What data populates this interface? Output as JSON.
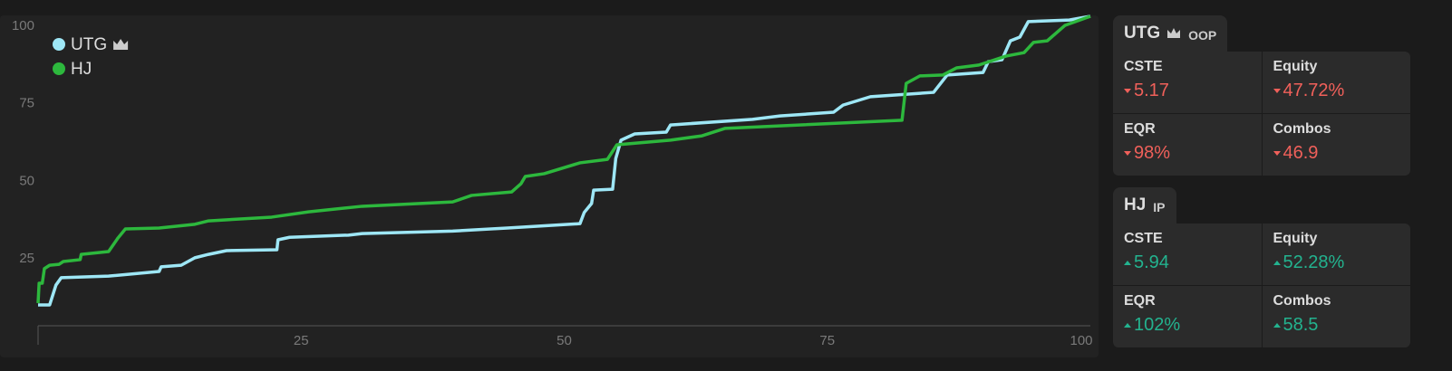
{
  "chart_data": {
    "type": "line",
    "xlim": [
      0,
      100
    ],
    "ylim": [
      3.5,
      103.5
    ],
    "xticks": [
      25,
      50,
      75,
      100
    ],
    "yticks": [
      25,
      50,
      75,
      100
    ],
    "legend": "upper left",
    "series": [
      {
        "name": "UTG",
        "color": "#9ee7f6",
        "x": [
          0,
          1.1,
          1.7,
          2.2,
          6.7,
          11.5,
          11.7,
          13.6,
          14.9,
          16.2,
          17.9,
          22.7,
          22.8,
          23.9,
          29.5,
          30.8,
          39.4,
          44.6,
          51.5,
          51.9,
          52.6,
          52.8,
          54.6,
          54.9,
          55.4,
          56.7,
          59.7,
          60.1,
          67.9,
          70.5,
          75.6,
          76.5,
          79.1,
          85.1,
          86.4,
          89.8,
          90.3,
          91.6,
          92.4,
          93.3,
          94.1,
          98,
          100
        ],
        "values": [
          10.2,
          10.2,
          16.6,
          19,
          19.5,
          21,
          22.5,
          23,
          25.4,
          26.5,
          27.7,
          28,
          31.2,
          32,
          32.7,
          33.2,
          34,
          35,
          36.4,
          40,
          42.9,
          47.2,
          47.5,
          57.4,
          63.3,
          65.3,
          65.9,
          68.2,
          70,
          71.1,
          72.3,
          74.6,
          77.3,
          78.7,
          84.3,
          85.1,
          88.6,
          89.2,
          95.3,
          96.5,
          101.5,
          102,
          103.2
        ]
      },
      {
        "name": "HJ",
        "color": "#2db83d",
        "x": [
          0,
          0.1,
          0.4,
          0.6,
          1.1,
          2,
          2.4,
          4,
          4.1,
          6.7,
          7.6,
          8.3,
          11.5,
          14.9,
          16.2,
          22.2,
          25.7,
          30.8,
          39.4,
          41.2,
          45,
          45.9,
          46.3,
          48.1,
          51.5,
          54.1,
          55,
          60.1,
          63.1,
          65.3,
          82.1,
          82.5,
          83.8,
          86,
          87.3,
          89.4,
          92,
          93.7,
          94.6,
          95.9,
          97.6,
          100
        ],
        "values": [
          10.8,
          17.2,
          17.2,
          21.9,
          23,
          23.3,
          24.2,
          24.8,
          26.5,
          27.4,
          31.8,
          34.7,
          35,
          36.2,
          37.3,
          38.5,
          40.2,
          42,
          43.4,
          45.5,
          46.6,
          49.3,
          51.6,
          52.5,
          56,
          57.1,
          61.8,
          63.3,
          64.7,
          67.1,
          69.7,
          81.6,
          84,
          84.3,
          86.6,
          87.5,
          90.4,
          91.5,
          94.8,
          95.3,
          100.3,
          103.2
        ]
      }
    ]
  },
  "panels": [
    {
      "player": "UTG",
      "position": "OOP",
      "crown": true,
      "stats": [
        {
          "label": "CSTE",
          "value": "5.17",
          "trend": "down"
        },
        {
          "label": "Equity",
          "value": "47.72%",
          "trend": "down"
        },
        {
          "label": "EQR",
          "value": "98%",
          "trend": "down"
        },
        {
          "label": "Combos",
          "value": "46.9",
          "trend": "down"
        }
      ]
    },
    {
      "player": "HJ",
      "position": "IP",
      "crown": false,
      "stats": [
        {
          "label": "CSTE",
          "value": "5.94",
          "trend": "up"
        },
        {
          "label": "Equity",
          "value": "52.28%",
          "trend": "up"
        },
        {
          "label": "EQR",
          "value": "102%",
          "trend": "up"
        },
        {
          "label": "Combos",
          "value": "58.5",
          "trend": "up"
        }
      ]
    }
  ]
}
